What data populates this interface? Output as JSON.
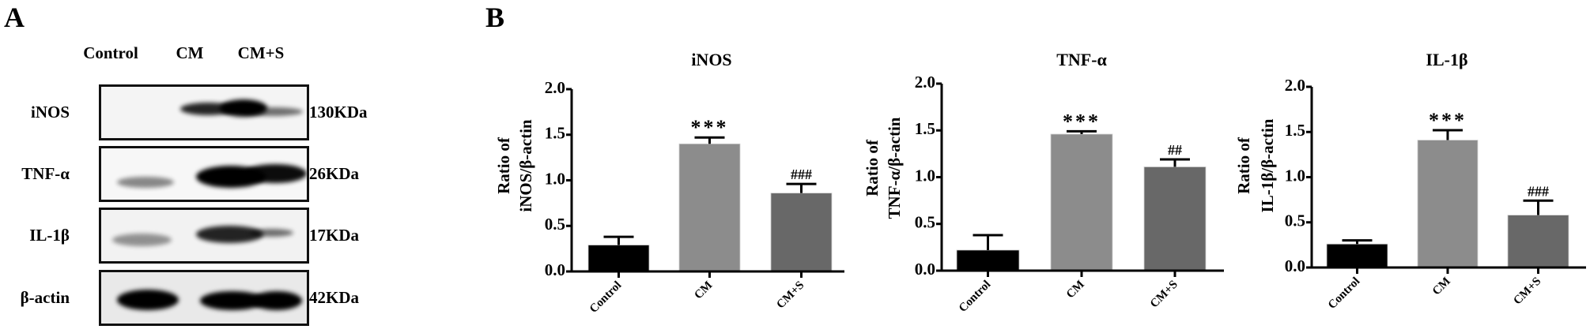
{
  "panels": {
    "a": {
      "letter": "A"
    },
    "b": {
      "letter": "B"
    }
  },
  "blot": {
    "lanes": [
      "Control",
      "CM",
      "CM+S"
    ],
    "rows": [
      {
        "protein": "iNOS",
        "size": "130KDa",
        "bands": [
          0.05,
          0.9,
          0.55
        ]
      },
      {
        "protein": "TNF-α",
        "size": "26KDa",
        "bands": [
          0.55,
          1.0,
          0.95
        ]
      },
      {
        "protein": "IL-1β",
        "size": "17KDa",
        "bands": [
          0.5,
          0.85,
          0.5
        ]
      },
      {
        "protein": "β-actin",
        "size": "42KDa",
        "bands": [
          1.0,
          1.0,
          1.0
        ]
      }
    ]
  },
  "colors": {
    "Control": "#000000",
    "CM": "#8c8c8c",
    "CM+S": "#686868"
  },
  "chart_data": [
    {
      "type": "bar",
      "title": "iNOS",
      "ylabel": [
        "Ratio of",
        "iNOS/β-actin"
      ],
      "xlabel": "",
      "categories": [
        "Control",
        "CM",
        "CM+S"
      ],
      "values": [
        0.29,
        1.4,
        0.86
      ],
      "error": [
        0.09,
        0.07,
        0.1
      ],
      "annotations": [
        "",
        "***",
        "###"
      ],
      "ylim": [
        0,
        2.0
      ],
      "yticks": [
        "0.0",
        "0.5",
        "1.0",
        "1.5",
        "2.0"
      ],
      "grid": false,
      "legend": "none"
    },
    {
      "type": "bar",
      "title": "TNF-α",
      "ylabel": [
        "Ratio of",
        "TNF-α/β-actin"
      ],
      "xlabel": "",
      "categories": [
        "Control",
        "CM",
        "CM+S"
      ],
      "values": [
        0.22,
        1.46,
        1.11
      ],
      "error": [
        0.16,
        0.03,
        0.08
      ],
      "annotations": [
        "",
        "***",
        "##"
      ],
      "ylim": [
        0,
        2.0
      ],
      "yticks": [
        "0.0",
        "0.5",
        "1.0",
        "1.5",
        "2.0"
      ],
      "grid": false,
      "legend": "none"
    },
    {
      "type": "bar",
      "title": "IL-1β",
      "ylabel": [
        "Ratio of",
        "IL-1β/β-actin"
      ],
      "xlabel": "",
      "categories": [
        "Control",
        "CM",
        "CM+S"
      ],
      "values": [
        0.26,
        1.41,
        0.58
      ],
      "error": [
        0.04,
        0.11,
        0.16
      ],
      "annotations": [
        "",
        "***",
        "###"
      ],
      "ylim": [
        0,
        2.0
      ],
      "yticks": [
        "0.0",
        "0.5",
        "1.0",
        "1.5",
        "2.0"
      ],
      "grid": false,
      "legend": "none"
    }
  ]
}
